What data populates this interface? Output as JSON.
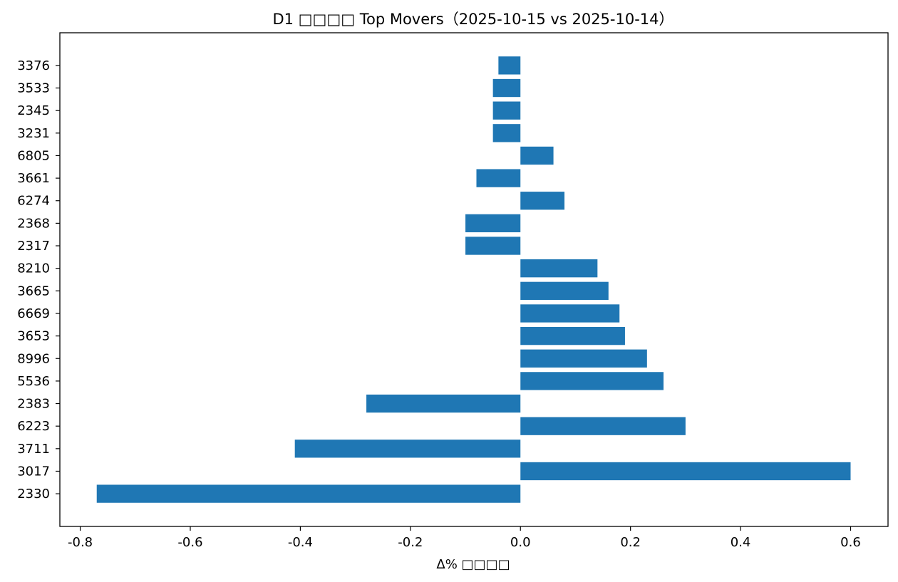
{
  "chart_data": {
    "type": "bar",
    "orientation": "horizontal",
    "title": "D1 □□□□ Top Movers（2025-10-15 vs 2025-10-14）",
    "xlabel": "Δ% □□□□",
    "ylabel": "",
    "xlim": [
      -0.837,
      0.668
    ],
    "xticks": [
      -0.8,
      -0.6,
      -0.4,
      -0.2,
      0.0,
      0.2,
      0.4,
      0.6
    ],
    "xtick_labels": [
      "-0.8",
      "-0.6",
      "-0.4",
      "-0.2",
      "0.0",
      "0.2",
      "0.4",
      "0.6"
    ],
    "grid": false,
    "bar_color": "#1f77b4",
    "categories": [
      "2330",
      "3017",
      "3711",
      "6223",
      "2383",
      "5536",
      "8996",
      "3653",
      "6669",
      "3665",
      "8210",
      "2317",
      "2368",
      "6274",
      "3661",
      "6805",
      "3231",
      "2345",
      "3533",
      "3376"
    ],
    "values": [
      -0.77,
      0.6,
      -0.41,
      0.3,
      -0.28,
      0.26,
      0.23,
      0.19,
      0.18,
      0.16,
      0.14,
      -0.1,
      -0.1,
      0.08,
      -0.08,
      0.06,
      -0.05,
      -0.05,
      -0.05,
      -0.04
    ]
  }
}
